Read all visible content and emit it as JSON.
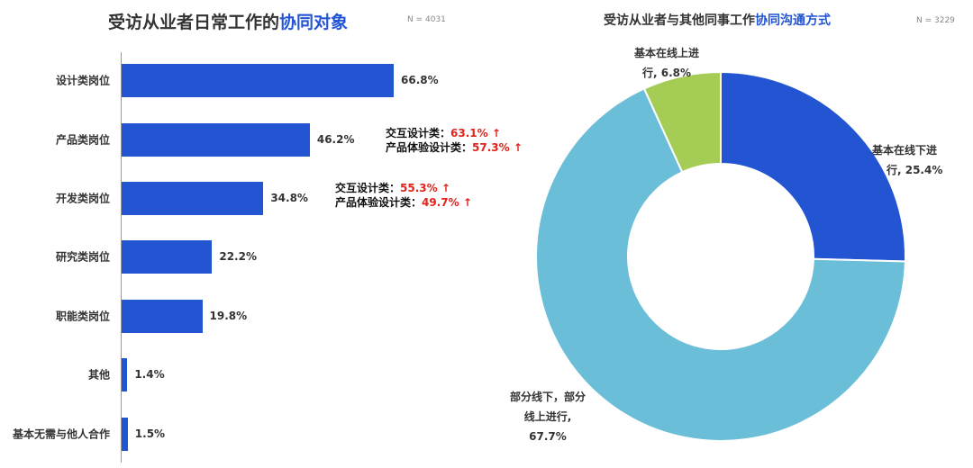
{
  "left_chart": {
    "title_prefix": "受访从业者日常工作的",
    "title_highlight": "协同对象",
    "n_note": "N = 4031",
    "annotations": [
      {
        "line1_label": "交互设计类：",
        "line1_value": "63.1% ↑",
        "line2_label": "产品体验设计类：",
        "line2_value": "57.3% ↑"
      },
      {
        "line1_label": "交互设计类：",
        "line1_value": "55.3% ↑",
        "line2_label": "产品体验设计类：",
        "line2_value": "49.7% ↑"
      }
    ]
  },
  "right_chart": {
    "title_prefix": "受访从业者与其他同事工作",
    "title_highlight": "协同沟通方式",
    "n_note": "N = 3229",
    "labels": {
      "offline": {
        "line1": "基本在线下进",
        "line2": "行, 25.4%"
      },
      "mixed": {
        "line1": "部分线下，部分",
        "line2": "线上进行,",
        "line3": "67.7%"
      },
      "online": {
        "line1": "基本在线上进",
        "line2": "行, 6.8%"
      }
    }
  },
  "colors": {
    "bar": "#2354d2",
    "highlight": "#2354d2",
    "arrow_red": "#e2231a",
    "pie_offline": "#2354d2",
    "pie_mixed": "#6bbed8",
    "pie_online": "#a5cc55"
  },
  "chart_data": [
    {
      "type": "bar",
      "orientation": "horizontal",
      "title": "受访从业者日常工作的协同对象",
      "categories": [
        "设计类岗位",
        "产品类岗位",
        "开发类岗位",
        "研究类岗位",
        "职能类岗位",
        "其他",
        "基本无需与他人合作"
      ],
      "values": [
        66.8,
        46.2,
        34.8,
        22.2,
        19.8,
        1.4,
        1.5
      ],
      "value_labels": [
        "66.8%",
        "46.2%",
        "34.8%",
        "22.2%",
        "19.8%",
        "1.4%",
        "1.5%"
      ],
      "xlim": [
        0,
        100
      ]
    },
    {
      "type": "pie",
      "donut": true,
      "title": "受访从业者与其他同事工作协同沟通方式",
      "categories": [
        "基本在线下进行",
        "部分线下，部分线上进行",
        "基本在线上进行"
      ],
      "values": [
        25.4,
        67.7,
        6.8
      ]
    }
  ]
}
